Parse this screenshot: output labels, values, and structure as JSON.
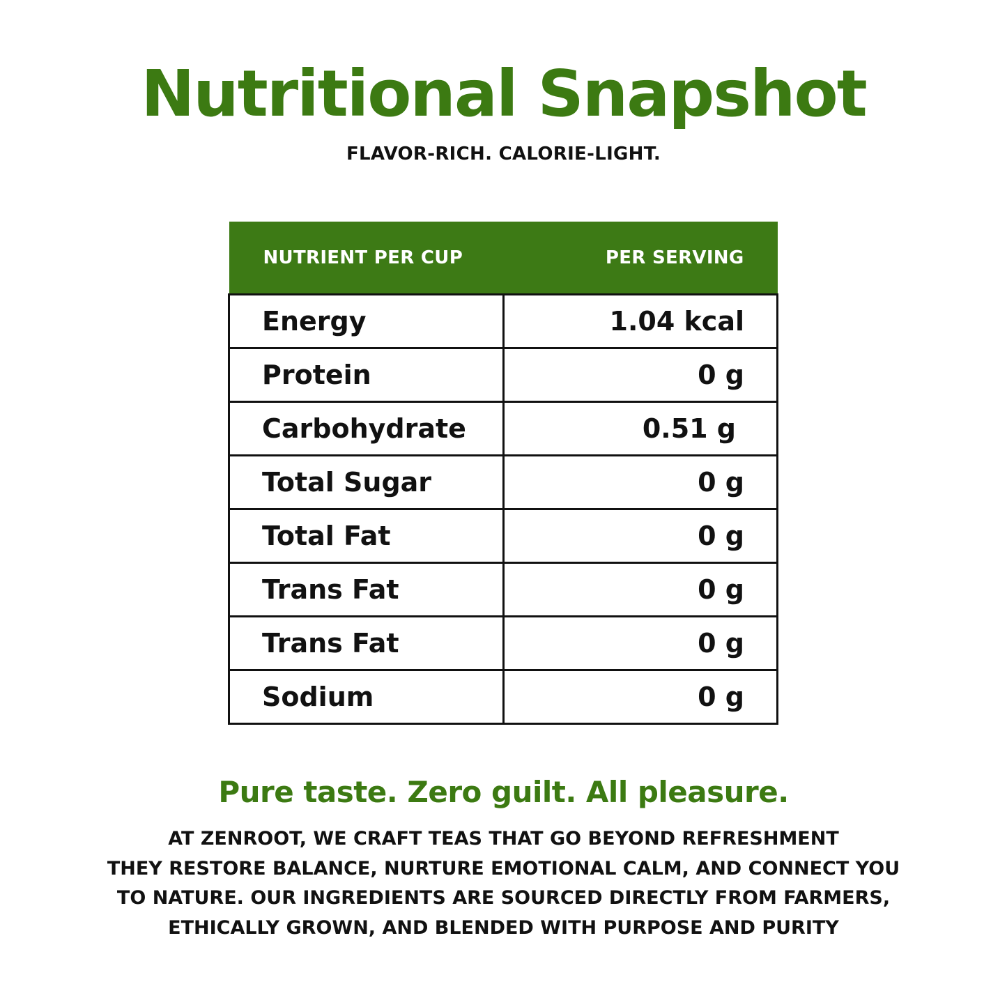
{
  "header": {
    "title": "Nutritional Snapshot",
    "subtitle": "FLAVOR-RICH. CALORIE-LIGHT."
  },
  "table": {
    "columns": [
      "NUTRIENT PER CUP",
      "PER SERVING"
    ],
    "rows": [
      {
        "nutrient": "Energy",
        "value": "1.04 kcal"
      },
      {
        "nutrient": "Protein",
        "value": "0 g"
      },
      {
        "nutrient": "Carbohydrate",
        "value": "0.51 g"
      },
      {
        "nutrient": "Total Sugar",
        "value": "0 g"
      },
      {
        "nutrient": "Total Fat",
        "value": "0 g"
      },
      {
        "nutrient": "Trans Fat",
        "value": "0 g"
      },
      {
        "nutrient": "Trans Fat",
        "value": "0 g"
      },
      {
        "nutrient": "Sodium",
        "value": "0 g"
      }
    ]
  },
  "footer": {
    "tagline": "Pure taste. Zero guilt. All pleasure.",
    "description_lines": [
      "AT ZENROOT, WE CRAFT TEAS THAT GO BEYOND REFRESHMENT",
      "THEY RESTORE BALANCE, NURTURE EMOTIONAL CALM, AND CONNECT YOU",
      "TO NATURE. OUR INGREDIENTS ARE SOURCED DIRECTLY FROM FARMERS,",
      "ETHICALLY GROWN, AND BLENDED WITH PURPOSE AND PURITY"
    ]
  },
  "colors": {
    "brand_green": "#3c7a12",
    "header_green": "#3d7a15",
    "text": "#111111",
    "background": "#ffffff"
  }
}
